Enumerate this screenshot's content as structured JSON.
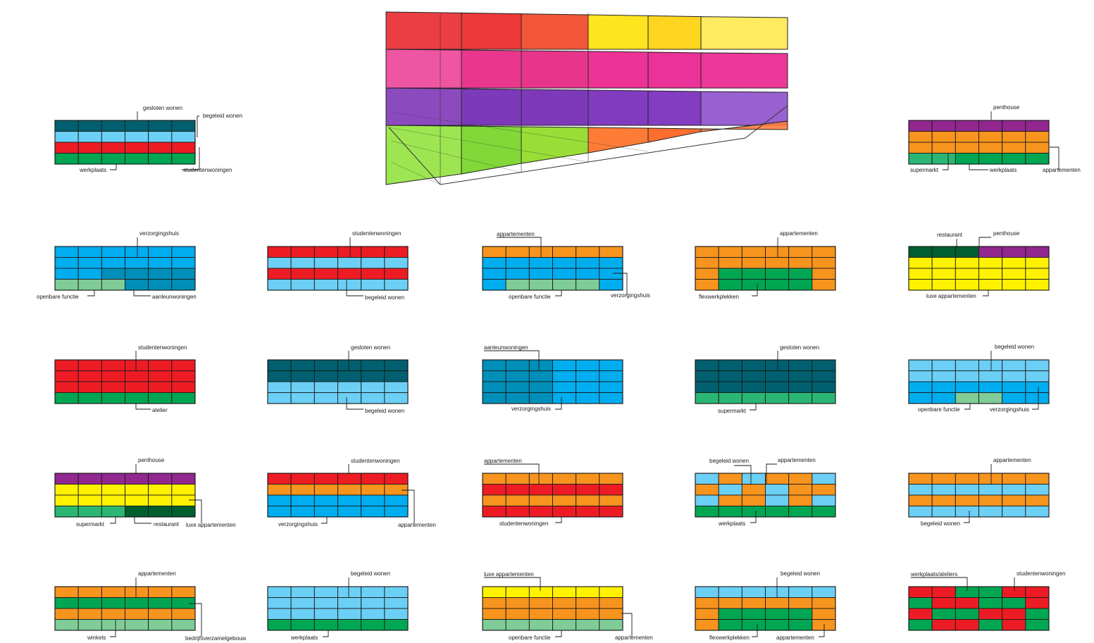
{
  "colors": {
    "dark-teal": "#00606f",
    "light-blue": "#6ccff5",
    "blue": "#00adef",
    "mid-blue": "#008fb8",
    "red": "#ed1c24",
    "green": "#00a652",
    "dark-green": "#005e2f",
    "mint": "#7fcc97",
    "sea-green": "#2bb673",
    "orange": "#f7941d",
    "purple": "#92278f",
    "yellow": "#fff200"
  },
  "blocks": [
    {
      "id": "block-1",
      "rows": [
        [
          "dark-teal"
        ],
        [
          "light-blue"
        ],
        [
          "red"
        ],
        [
          "green"
        ]
      ],
      "labels": [
        {
          "text": "gesloten wonen"
        },
        {
          "text": "begeleid wonen"
        },
        {
          "text": "werkplaats"
        },
        {
          "text": "studentenwoningen"
        }
      ]
    },
    {
      "id": "block-2",
      "rows": [
        [
          "purple"
        ],
        [
          "orange"
        ],
        [
          "orange"
        ],
        [
          "sea-green",
          "sea-green",
          "green",
          "green",
          "green",
          "green"
        ]
      ],
      "labels": [
        {
          "text": "penthouse"
        },
        {
          "text": "supermarkt"
        },
        {
          "text": "werkplaats"
        },
        {
          "text": "appartementen"
        }
      ]
    },
    {
      "id": "block-3",
      "rows": [
        [
          "blue"
        ],
        [
          "blue"
        ],
        [
          "blue",
          "blue",
          "mid-blue",
          "mid-blue",
          "mid-blue",
          "mid-blue"
        ],
        [
          "mint",
          "mint",
          "mint",
          "mid-blue",
          "mid-blue",
          "mid-blue"
        ]
      ],
      "labels": [
        {
          "text": "verzorgingshuis"
        },
        {
          "text": "openbare functie"
        },
        {
          "text": "aanleunwoningen"
        }
      ]
    },
    {
      "id": "block-4",
      "rows": [
        [
          "red"
        ],
        [
          "light-blue"
        ],
        [
          "red"
        ],
        [
          "light-blue"
        ]
      ],
      "labels": [
        {
          "text": "studentenwoningen"
        },
        {
          "text": "begeleid wonen"
        }
      ]
    },
    {
      "id": "block-5",
      "rows": [
        [
          "orange"
        ],
        [
          "blue"
        ],
        [
          "blue"
        ],
        [
          "blue",
          "mint",
          "mint",
          "mint",
          "mint",
          "blue"
        ]
      ],
      "labels": [
        {
          "text": "appartementen"
        },
        {
          "text": "openbare functie"
        },
        {
          "text": "verzorgingshuis"
        }
      ]
    },
    {
      "id": "block-6",
      "rows": [
        [
          "orange"
        ],
        [
          "orange"
        ],
        [
          "orange",
          "green",
          "green",
          "green",
          "green",
          "orange"
        ],
        [
          "orange",
          "green",
          "green",
          "green",
          "green",
          "orange"
        ]
      ],
      "labels": [
        {
          "text": "appartementen"
        },
        {
          "text": "flexwerkplekken"
        }
      ]
    },
    {
      "id": "block-7",
      "rows": [
        [
          "dark-green",
          "dark-green",
          "dark-green",
          "purple",
          "purple",
          "purple"
        ],
        [
          "yellow"
        ],
        [
          "yellow"
        ],
        [
          "yellow"
        ]
      ],
      "labels": [
        {
          "text": "restaurant"
        },
        {
          "text": "penthouse"
        },
        {
          "text": "luxe appartementen"
        }
      ]
    },
    {
      "id": "block-8",
      "rows": [
        [
          "red"
        ],
        [
          "red"
        ],
        [
          "red"
        ],
        [
          "green"
        ]
      ],
      "labels": [
        {
          "text": "studentenwoningen"
        },
        {
          "text": "atelier"
        }
      ]
    },
    {
      "id": "block-9",
      "rows": [
        [
          "dark-teal"
        ],
        [
          "dark-teal"
        ],
        [
          "light-blue"
        ],
        [
          "light-blue"
        ]
      ],
      "labels": [
        {
          "text": "gesloten wonen"
        },
        {
          "text": "begeleid wonen"
        }
      ]
    },
    {
      "id": "block-10",
      "rows": [
        [
          "mid-blue",
          "mid-blue",
          "mid-blue",
          "blue",
          "blue",
          "blue"
        ],
        [
          "mid-blue",
          "mid-blue",
          "mid-blue",
          "blue",
          "blue",
          "blue"
        ],
        [
          "mid-blue",
          "mid-blue",
          "mid-blue",
          "blue",
          "blue",
          "blue"
        ],
        [
          "mid-blue",
          "mid-blue",
          "mid-blue",
          "blue",
          "blue",
          "blue"
        ]
      ],
      "labels": [
        {
          "text": "aanleunwoningen"
        },
        {
          "text": "verzorgingshuis"
        }
      ]
    },
    {
      "id": "block-11",
      "rows": [
        [
          "dark-teal"
        ],
        [
          "dark-teal"
        ],
        [
          "dark-teal"
        ],
        [
          "sea-green"
        ]
      ],
      "labels": [
        {
          "text": "gesloten wonen"
        },
        {
          "text": "supermarkt"
        }
      ]
    },
    {
      "id": "block-12",
      "rows": [
        [
          "light-blue"
        ],
        [
          "light-blue"
        ],
        [
          "blue"
        ],
        [
          "blue",
          "blue",
          "mint",
          "mint",
          "blue",
          "blue"
        ]
      ],
      "labels": [
        {
          "text": "begeleid wonen"
        },
        {
          "text": "openbare functie"
        },
        {
          "text": "verzorgingshuis"
        }
      ]
    },
    {
      "id": "block-13",
      "rows": [
        [
          "purple"
        ],
        [
          "yellow"
        ],
        [
          "yellow"
        ],
        [
          "sea-green",
          "sea-green",
          "sea-green",
          "dark-green",
          "dark-green",
          "dark-green"
        ]
      ],
      "labels": [
        {
          "text": "penthouse"
        },
        {
          "text": "supermarkt"
        },
        {
          "text": "restaurant"
        },
        {
          "text": "luxe appartementen"
        }
      ]
    },
    {
      "id": "block-14",
      "rows": [
        [
          "red"
        ],
        [
          "orange"
        ],
        [
          "blue"
        ],
        [
          "blue"
        ]
      ],
      "labels": [
        {
          "text": "studentenwoningen"
        },
        {
          "text": "verzorgingshuis"
        },
        {
          "text": "appartementen"
        }
      ]
    },
    {
      "id": "block-15",
      "rows": [
        [
          "orange"
        ],
        [
          "red"
        ],
        [
          "orange"
        ],
        [
          "red"
        ]
      ],
      "labels": [
        {
          "text": "appartementen"
        },
        {
          "text": "studentenwoningen"
        }
      ]
    },
    {
      "id": "block-16",
      "rows": [
        [
          "light-blue",
          "orange",
          "light-blue",
          "orange",
          "orange",
          "light-blue"
        ],
        [
          "orange",
          "light-blue",
          "orange",
          "light-blue",
          "orange",
          "orange"
        ],
        [
          "light-blue",
          "orange",
          "orange",
          "light-blue",
          "orange",
          "light-blue"
        ],
        [
          "green"
        ]
      ],
      "labels": [
        {
          "text": "begeleid wonen"
        },
        {
          "text": "appartementen"
        },
        {
          "text": "werkplaats"
        }
      ]
    },
    {
      "id": "block-17",
      "rows": [
        [
          "orange"
        ],
        [
          "light-blue"
        ],
        [
          "orange"
        ],
        [
          "light-blue"
        ]
      ],
      "labels": [
        {
          "text": "appartementen"
        },
        {
          "text": "begeleid wonen"
        }
      ]
    },
    {
      "id": "block-18",
      "rows": [
        [
          "orange"
        ],
        [
          "green"
        ],
        [
          "orange"
        ],
        [
          "mint"
        ]
      ],
      "labels": [
        {
          "text": "appartementen"
        },
        {
          "text": "winkels"
        },
        {
          "text": "bedrijfsverzamelgebouw"
        }
      ]
    },
    {
      "id": "block-19",
      "rows": [
        [
          "light-blue"
        ],
        [
          "light-blue"
        ],
        [
          "light-blue"
        ],
        [
          "green"
        ]
      ],
      "labels": [
        {
          "text": "begeleid wonen"
        },
        {
          "text": "werkplaats"
        }
      ]
    },
    {
      "id": "block-20",
      "rows": [
        [
          "yellow"
        ],
        [
          "orange"
        ],
        [
          "orange"
        ],
        [
          "mint"
        ]
      ],
      "labels": [
        {
          "text": "luxe appartementen"
        },
        {
          "text": "openbare functie"
        },
        {
          "text": "appartementen"
        }
      ]
    },
    {
      "id": "block-21",
      "rows": [
        [
          "light-blue"
        ],
        [
          "orange"
        ],
        [
          "orange",
          "green",
          "green",
          "green",
          "green",
          "orange"
        ],
        [
          "orange",
          "green",
          "green",
          "green",
          "green",
          "orange"
        ]
      ],
      "labels": [
        {
          "text": "begeleid wonen"
        },
        {
          "text": "flexwerkplekken"
        },
        {
          "text": "appartementen"
        }
      ]
    },
    {
      "id": "block-22",
      "rows": [
        [
          "red",
          "red",
          "green",
          "green",
          "red",
          "red"
        ],
        [
          "green",
          "red",
          "red",
          "green",
          "green",
          "red"
        ],
        [
          "red",
          "green",
          "green",
          "red",
          "red",
          "green"
        ],
        [
          "green",
          "red",
          "red",
          "green",
          "red",
          "green"
        ]
      ],
      "labels": [
        {
          "text": "werkplaats/ateliers"
        },
        {
          "text": "studentenwoningen"
        }
      ]
    }
  ],
  "cube": {
    "rows": [
      [
        "#e8232a",
        "#ea1c1f",
        "#f0401c",
        "#ffe100",
        "#ffd000",
        "#ffe84a"
      ],
      [
        "#ec3d96",
        "#e61b7d",
        "#e5197c",
        "#ea1787",
        "#e8168a",
        "#e91c8a"
      ],
      [
        "#7b32b6",
        "#6a1fb0",
        "#6b1eb1",
        "#7020b6",
        "#7322ba",
        "#8a4ac9"
      ],
      [
        "#8fe23a",
        "#6fd31d",
        "#8bd91a",
        "#ff6a1a",
        "#ff5a12",
        "#ff7a3a"
      ]
    ]
  }
}
